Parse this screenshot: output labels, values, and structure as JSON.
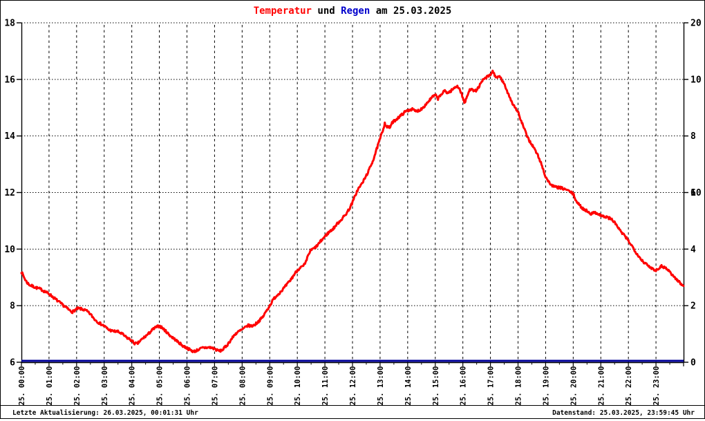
{
  "title": {
    "temperature": "Temperatur",
    "und": " und ",
    "regen": "Regen",
    "date": " am 25.03.2025"
  },
  "colors": {
    "temperature_line": "#ff0000",
    "rain_line": "#000099",
    "rain_title": "#0000cc",
    "green_axis_labels": "#00dd00",
    "axis_and_grid": "#000000",
    "background": "#ffffff"
  },
  "footer": {
    "left": "Letzte Aktualisierung: 26.03.2025, 00:01:31 Uhr",
    "right": "Datenstand: 25.03.2025, 23:59:45 Uhr"
  },
  "chart_data": {
    "type": "line",
    "title": "Temperatur und Regen am 25.03.2025",
    "grid": "dashed",
    "x_axis": {
      "unit": "hour of day",
      "labels": [
        "25. 00:00",
        "25. 01:00",
        "25. 02:00",
        "25. 03:00",
        "25. 04:00",
        "25. 05:00",
        "25. 06:00",
        "25. 07:00",
        "25. 08:00",
        "25. 09:00",
        "25. 10:00",
        "25. 11:00",
        "25. 12:00",
        "25. 13:00",
        "25. 14:00",
        "25. 15:00",
        "25. 16:00",
        "25. 17:00",
        "25. 18:00",
        "25. 19:00",
        "25. 20:00",
        "25. 21:00",
        "25. 22:00",
        "25. 23:00"
      ],
      "range_hours": [
        0,
        24
      ]
    },
    "left_axis": {
      "name": "Temperatur (°C)",
      "tick_values": [
        6,
        8,
        10,
        12,
        14,
        16,
        18
      ],
      "range": [
        6,
        18
      ]
    },
    "right_axis_black": {
      "name": "Regen scale",
      "tick_values": [
        0,
        10,
        20
      ],
      "range": [
        0,
        20
      ]
    },
    "right_axis_green": {
      "name": "secondary right scale",
      "tick_values": [
        2,
        4,
        6,
        8,
        10
      ],
      "range": [
        0,
        12
      ]
    },
    "series": [
      {
        "name": "Temperatur",
        "color": "#ff0000",
        "axis": "left",
        "points_hour_degC": [
          [
            0,
            9.2
          ],
          [
            0.05,
            9.1
          ],
          [
            0.12,
            8.95
          ],
          [
            0.2,
            8.82
          ],
          [
            0.3,
            8.73
          ],
          [
            0.42,
            8.68
          ],
          [
            0.55,
            8.63
          ],
          [
            0.7,
            8.58
          ],
          [
            0.85,
            8.5
          ],
          [
            1.0,
            8.42
          ],
          [
            1.15,
            8.3
          ],
          [
            1.3,
            8.18
          ],
          [
            1.45,
            8.06
          ],
          [
            1.6,
            7.95
          ],
          [
            1.75,
            7.83
          ],
          [
            1.85,
            7.78
          ],
          [
            1.95,
            7.85
          ],
          [
            2.05,
            7.9
          ],
          [
            2.2,
            7.88
          ],
          [
            2.35,
            7.82
          ],
          [
            2.5,
            7.7
          ],
          [
            2.65,
            7.52
          ],
          [
            2.8,
            7.4
          ],
          [
            3.0,
            7.28
          ],
          [
            3.15,
            7.16
          ],
          [
            3.3,
            7.1
          ],
          [
            3.5,
            7.08
          ],
          [
            3.65,
            7.0
          ],
          [
            3.8,
            6.88
          ],
          [
            3.95,
            6.8
          ],
          [
            4.1,
            6.67
          ],
          [
            4.2,
            6.65
          ],
          [
            4.3,
            6.75
          ],
          [
            4.45,
            6.88
          ],
          [
            4.6,
            7.0
          ],
          [
            4.75,
            7.15
          ],
          [
            4.9,
            7.25
          ],
          [
            5.0,
            7.28
          ],
          [
            5.1,
            7.22
          ],
          [
            5.25,
            7.08
          ],
          [
            5.4,
            6.93
          ],
          [
            5.55,
            6.82
          ],
          [
            5.7,
            6.7
          ],
          [
            5.85,
            6.58
          ],
          [
            6.0,
            6.5
          ],
          [
            6.15,
            6.42
          ],
          [
            6.25,
            6.38
          ],
          [
            6.4,
            6.44
          ],
          [
            6.55,
            6.5
          ],
          [
            6.7,
            6.52
          ],
          [
            6.85,
            6.52
          ],
          [
            7.0,
            6.48
          ],
          [
            7.1,
            6.42
          ],
          [
            7.2,
            6.4
          ],
          [
            7.3,
            6.45
          ],
          [
            7.45,
            6.6
          ],
          [
            7.6,
            6.8
          ],
          [
            7.75,
            7.0
          ],
          [
            7.9,
            7.1
          ],
          [
            8.05,
            7.18
          ],
          [
            8.2,
            7.3
          ],
          [
            8.35,
            7.28
          ],
          [
            8.45,
            7.32
          ],
          [
            8.6,
            7.45
          ],
          [
            8.75,
            7.6
          ],
          [
            8.9,
            7.85
          ],
          [
            9.0,
            8.0
          ],
          [
            9.15,
            8.25
          ],
          [
            9.3,
            8.4
          ],
          [
            9.45,
            8.55
          ],
          [
            9.6,
            8.72
          ],
          [
            9.75,
            8.9
          ],
          [
            9.9,
            9.12
          ],
          [
            10.0,
            9.25
          ],
          [
            10.1,
            9.35
          ],
          [
            10.2,
            9.38
          ],
          [
            10.3,
            9.5
          ],
          [
            10.4,
            9.8
          ],
          [
            10.5,
            9.97
          ],
          [
            10.6,
            10.02
          ],
          [
            10.7,
            10.1
          ],
          [
            10.85,
            10.28
          ],
          [
            11.0,
            10.45
          ],
          [
            11.15,
            10.6
          ],
          [
            11.3,
            10.72
          ],
          [
            11.45,
            10.9
          ],
          [
            11.6,
            11.05
          ],
          [
            11.75,
            11.22
          ],
          [
            11.9,
            11.45
          ],
          [
            12.0,
            11.65
          ],
          [
            12.1,
            11.9
          ],
          [
            12.2,
            12.12
          ],
          [
            12.3,
            12.25
          ],
          [
            12.45,
            12.5
          ],
          [
            12.6,
            12.8
          ],
          [
            12.75,
            13.15
          ],
          [
            12.9,
            13.6
          ],
          [
            13.0,
            13.9
          ],
          [
            13.1,
            14.2
          ],
          [
            13.17,
            14.45
          ],
          [
            13.25,
            14.32
          ],
          [
            13.35,
            14.3
          ],
          [
            13.45,
            14.48
          ],
          [
            13.6,
            14.6
          ],
          [
            13.75,
            14.72
          ],
          [
            13.9,
            14.85
          ],
          [
            14.0,
            14.9
          ],
          [
            14.15,
            14.95
          ],
          [
            14.3,
            14.87
          ],
          [
            14.45,
            14.92
          ],
          [
            14.6,
            15.05
          ],
          [
            14.75,
            15.22
          ],
          [
            14.9,
            15.38
          ],
          [
            15.0,
            15.45
          ],
          [
            15.1,
            15.32
          ],
          [
            15.2,
            15.45
          ],
          [
            15.35,
            15.6
          ],
          [
            15.45,
            15.52
          ],
          [
            15.55,
            15.58
          ],
          [
            15.7,
            15.7
          ],
          [
            15.8,
            15.78
          ],
          [
            15.9,
            15.62
          ],
          [
            16.0,
            15.35
          ],
          [
            16.07,
            15.15
          ],
          [
            16.15,
            15.4
          ],
          [
            16.25,
            15.62
          ],
          [
            16.33,
            15.7
          ],
          [
            16.42,
            15.57
          ],
          [
            16.5,
            15.62
          ],
          [
            16.62,
            15.8
          ],
          [
            16.75,
            16.0
          ],
          [
            16.87,
            16.08
          ],
          [
            17.0,
            16.15
          ],
          [
            17.08,
            16.3
          ],
          [
            17.15,
            16.15
          ],
          [
            17.25,
            16.05
          ],
          [
            17.33,
            16.1
          ],
          [
            17.42,
            15.97
          ],
          [
            17.5,
            15.82
          ],
          [
            17.6,
            15.6
          ],
          [
            17.7,
            15.38
          ],
          [
            17.8,
            15.15
          ],
          [
            17.9,
            15.0
          ],
          [
            18.0,
            14.85
          ],
          [
            18.1,
            14.55
          ],
          [
            18.2,
            14.32
          ],
          [
            18.3,
            14.05
          ],
          [
            18.4,
            13.85
          ],
          [
            18.55,
            13.62
          ],
          [
            18.7,
            13.35
          ],
          [
            18.85,
            13.0
          ],
          [
            19.0,
            12.55
          ],
          [
            19.15,
            12.32
          ],
          [
            19.3,
            12.2
          ],
          [
            19.45,
            12.18
          ],
          [
            19.6,
            12.15
          ],
          [
            19.75,
            12.1
          ],
          [
            19.9,
            12.02
          ],
          [
            20.0,
            11.95
          ],
          [
            20.1,
            11.72
          ],
          [
            20.2,
            11.58
          ],
          [
            20.35,
            11.43
          ],
          [
            20.5,
            11.35
          ],
          [
            20.65,
            11.25
          ],
          [
            20.8,
            11.3
          ],
          [
            20.95,
            11.22
          ],
          [
            21.1,
            11.15
          ],
          [
            21.25,
            11.12
          ],
          [
            21.4,
            11.05
          ],
          [
            21.55,
            10.88
          ],
          [
            21.7,
            10.65
          ],
          [
            21.85,
            10.48
          ],
          [
            22.0,
            10.3
          ],
          [
            22.15,
            10.08
          ],
          [
            22.3,
            9.85
          ],
          [
            22.45,
            9.65
          ],
          [
            22.6,
            9.5
          ],
          [
            22.75,
            9.38
          ],
          [
            22.9,
            9.3
          ],
          [
            23.0,
            9.25
          ],
          [
            23.1,
            9.33
          ],
          [
            23.2,
            9.4
          ],
          [
            23.3,
            9.36
          ],
          [
            23.4,
            9.3
          ],
          [
            23.5,
            9.2
          ],
          [
            23.65,
            9.02
          ],
          [
            23.8,
            8.88
          ],
          [
            23.95,
            8.72
          ],
          [
            24,
            8.7
          ]
        ]
      },
      {
        "name": "Regen",
        "color": "#000099",
        "axis": "right_black",
        "points_hour_mm": [
          [
            0,
            0
          ],
          [
            24,
            0
          ]
        ],
        "note": "constant 0 all day (flat line on bottom axis)"
      }
    ]
  }
}
